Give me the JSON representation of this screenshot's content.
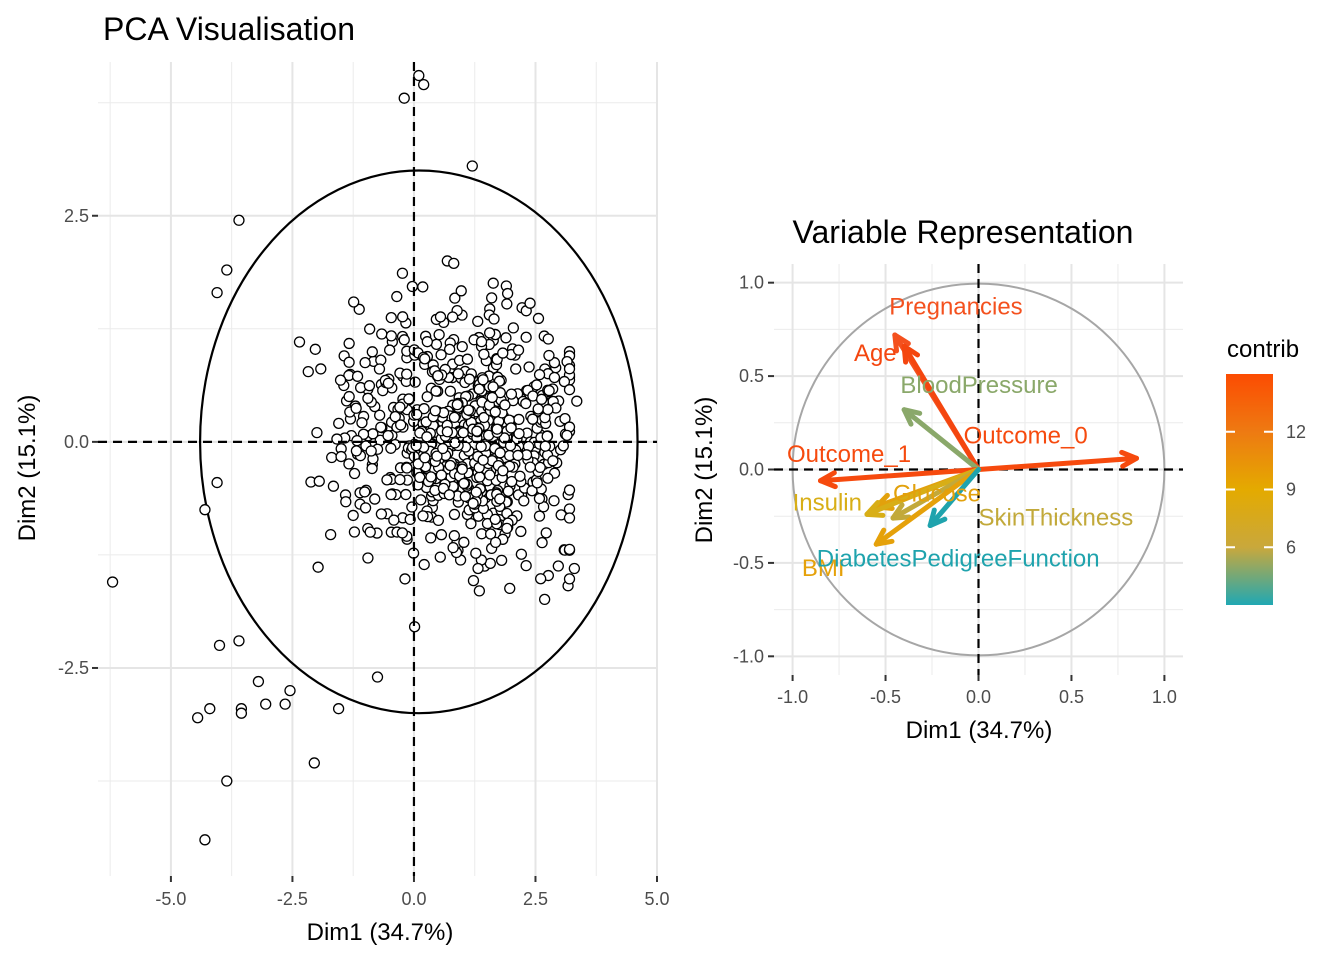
{
  "chart_data": [
    {
      "type": "scatter",
      "title": "PCA Visualisation",
      "xlabel": "Dim1 (34.7%)",
      "ylabel": "Dim2 (15.1%)",
      "xlim": [
        -6.5,
        5.0
      ],
      "ylim": [
        -4.8,
        4.2
      ],
      "x_ticks": [
        "-5.0",
        "-2.5",
        "0.0",
        "2.5",
        "5.0"
      ],
      "x_tick_values": [
        -5.0,
        -2.5,
        0.0,
        2.5,
        5.0
      ],
      "y_ticks": [
        "2.5",
        "0.0",
        "-2.5"
      ],
      "y_tick_values": [
        2.5,
        0.0,
        -2.5
      ],
      "grid": true,
      "reference_lines": [
        0,
        0
      ],
      "confidence_ellipse": {
        "center": [
          0.1,
          0.0
        ],
        "rx": 4.5,
        "ry": 3.0
      },
      "outlier_points": [
        [
          -6.2,
          -1.55
        ],
        [
          -4.3,
          -4.4
        ],
        [
          -3.85,
          -3.75
        ],
        [
          -4.45,
          -3.05
        ],
        [
          -4.2,
          -2.95
        ],
        [
          -3.55,
          -2.95
        ],
        [
          -3.55,
          -3.0
        ],
        [
          -3.2,
          -2.65
        ],
        [
          -3.05,
          -2.9
        ],
        [
          -2.65,
          -2.9
        ],
        [
          -2.55,
          -2.75
        ],
        [
          -2.05,
          -3.55
        ],
        [
          -4.0,
          -2.25
        ],
        [
          -3.6,
          -2.2
        ],
        [
          -1.55,
          -2.95
        ],
        [
          -0.75,
          -2.6
        ],
        [
          -0.2,
          3.8
        ],
        [
          0.1,
          4.05
        ],
        [
          0.2,
          3.95
        ],
        [
          1.2,
          3.05
        ],
        [
          3.35,
          0.45
        ],
        [
          3.3,
          -1.4
        ],
        [
          -3.6,
          2.45
        ],
        [
          -3.85,
          1.9
        ],
        [
          -4.05,
          1.65
        ],
        [
          -4.3,
          -0.75
        ],
        [
          -4.05,
          -0.45
        ]
      ],
      "cloud": {
        "count": 740,
        "seed": 7,
        "x_mean": 0.2,
        "y_mean": 0.1,
        "x_range": [
          -3.9,
          3.2
        ],
        "y_range": [
          -2.3,
          3.0
        ]
      }
    },
    {
      "type": "vector",
      "title": "Variable Representation",
      "xlabel": "Dim1 (34.7%)",
      "ylabel": "Dim2 (15.1%)",
      "xlim": [
        -1.1,
        1.1
      ],
      "ylim": [
        -1.1,
        1.1
      ],
      "x_ticks": [
        "-1.0",
        "-0.5",
        "0.0",
        "0.5",
        "1.0"
      ],
      "x_tick_values": [
        -1.0,
        -0.5,
        0.0,
        0.5,
        1.0
      ],
      "y_ticks": [
        "1.0",
        "0.5",
        "0.0",
        "-0.5",
        "-1.0"
      ],
      "y_tick_values": [
        1.0,
        0.5,
        0.0,
        -0.5,
        -1.0
      ],
      "grid": true,
      "unit_circle": true,
      "variables": [
        {
          "name": "Pregnancies",
          "x": -0.45,
          "y": 0.72,
          "contrib": 14.0,
          "color": "#f4511e",
          "label_offset": [
            -0.48,
            0.83
          ]
        },
        {
          "name": "Age",
          "x": -0.4,
          "y": 0.66,
          "contrib": 14.6,
          "color": "#f4460f",
          "label_offset": [
            -0.67,
            0.58
          ]
        },
        {
          "name": "BloodPressure",
          "x": -0.4,
          "y": 0.32,
          "contrib": 5.5,
          "color": "#8aa86a",
          "label_offset": [
            -0.42,
            0.41
          ]
        },
        {
          "name": "Outcome_0",
          "x": 0.85,
          "y": 0.06,
          "contrib": 14.8,
          "color": "#f64a0e",
          "label_offset": [
            -0.08,
            0.14
          ]
        },
        {
          "name": "Outcome_1",
          "x": -0.85,
          "y": -0.06,
          "contrib": 14.8,
          "color": "#f64a0e",
          "label_offset": [
            -1.03,
            0.04
          ]
        },
        {
          "name": "Glucose",
          "x": -0.55,
          "y": -0.2,
          "contrib": 9.5,
          "color": "#e2a10c",
          "label_offset": [
            -0.46,
            -0.17
          ]
        },
        {
          "name": "Insulin",
          "x": -0.6,
          "y": -0.24,
          "contrib": 9.0,
          "color": "#d8ae16",
          "label_offset": [
            -1.0,
            -0.22
          ]
        },
        {
          "name": "SkinThickness",
          "x": -0.46,
          "y": -0.26,
          "contrib": 7.0,
          "color": "#c2a93a",
          "label_offset": [
            0.0,
            -0.3
          ]
        },
        {
          "name": "BMI",
          "x": -0.55,
          "y": -0.4,
          "contrib": 10.5,
          "color": "#e5a10a",
          "label_offset": [
            -0.95,
            -0.57
          ]
        },
        {
          "name": "DiabetesPedigreeFunction",
          "x": -0.26,
          "y": -0.3,
          "contrib": 3.0,
          "color": "#1fa3ad",
          "label_offset": [
            -0.87,
            -0.52
          ]
        }
      ],
      "legend": {
        "title": "contrib",
        "placement": "right",
        "labels": [
          "12",
          "9",
          "6"
        ],
        "label_values": [
          12,
          9,
          6
        ],
        "range": [
          3.0,
          15.0
        ],
        "colors": [
          "#20a8b3",
          "#c9a83c",
          "#e4aa00",
          "#ee7a12",
          "#fc4c02"
        ]
      }
    }
  ]
}
